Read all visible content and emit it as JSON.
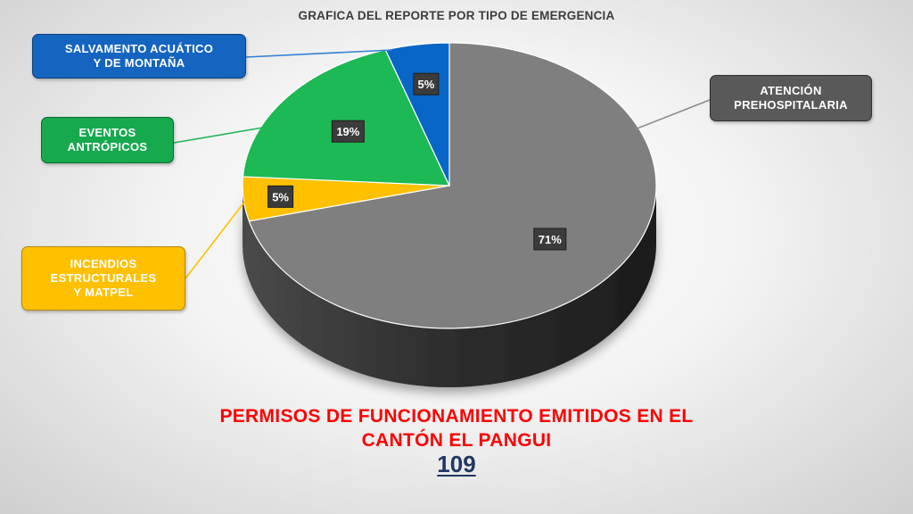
{
  "chart_data": {
    "type": "pie",
    "title": "GRAFICA DEL REPORTE POR TIPO DE EMERGENCIA",
    "slices": [
      {
        "label": "ATENCIÓN PREHOSPITALARIA",
        "value": 71,
        "value_label": "71%",
        "color": "#7f7f7f"
      },
      {
        "label": "INCENDIOS ESTRUCTURALES Y MATPEL",
        "value": 5,
        "value_label": "5%",
        "color": "#ffc000"
      },
      {
        "label": "EVENTOS ANTRÓPICOS",
        "value": 19,
        "value_label": "19%",
        "color": "#1db954"
      },
      {
        "label": "SALVAMENTO ACUÁTICO Y DE MONTAÑA",
        "value": 5,
        "value_label": "5%",
        "color": "#0866c6"
      }
    ],
    "style": "3d-pie",
    "data_labels": "dark boxes on slices",
    "legend": "callouts with leader lines"
  },
  "callouts": {
    "atencion": [
      "ATENCIÓN",
      "PREHOSPITALARIA"
    ],
    "salvamento": [
      "SALVAMENTO ACUÁTICO",
      "Y DE MONTAÑA"
    ],
    "eventos": [
      "EVENTOS",
      "ANTRÓPICOS"
    ],
    "incendios": [
      "INCENDIOS",
      "ESTRUCTURALES",
      "Y MATPEL"
    ]
  },
  "footer": {
    "line1": "PERMISOS DE FUNCIONAMIENTO EMITIDOS EN EL",
    "line2": "CANTÓN EL PANGUI",
    "total": "109"
  },
  "colors": {
    "text_red": "#ff0000",
    "total_navy": "#1f3864",
    "pie_side": "#3a3a3a"
  }
}
